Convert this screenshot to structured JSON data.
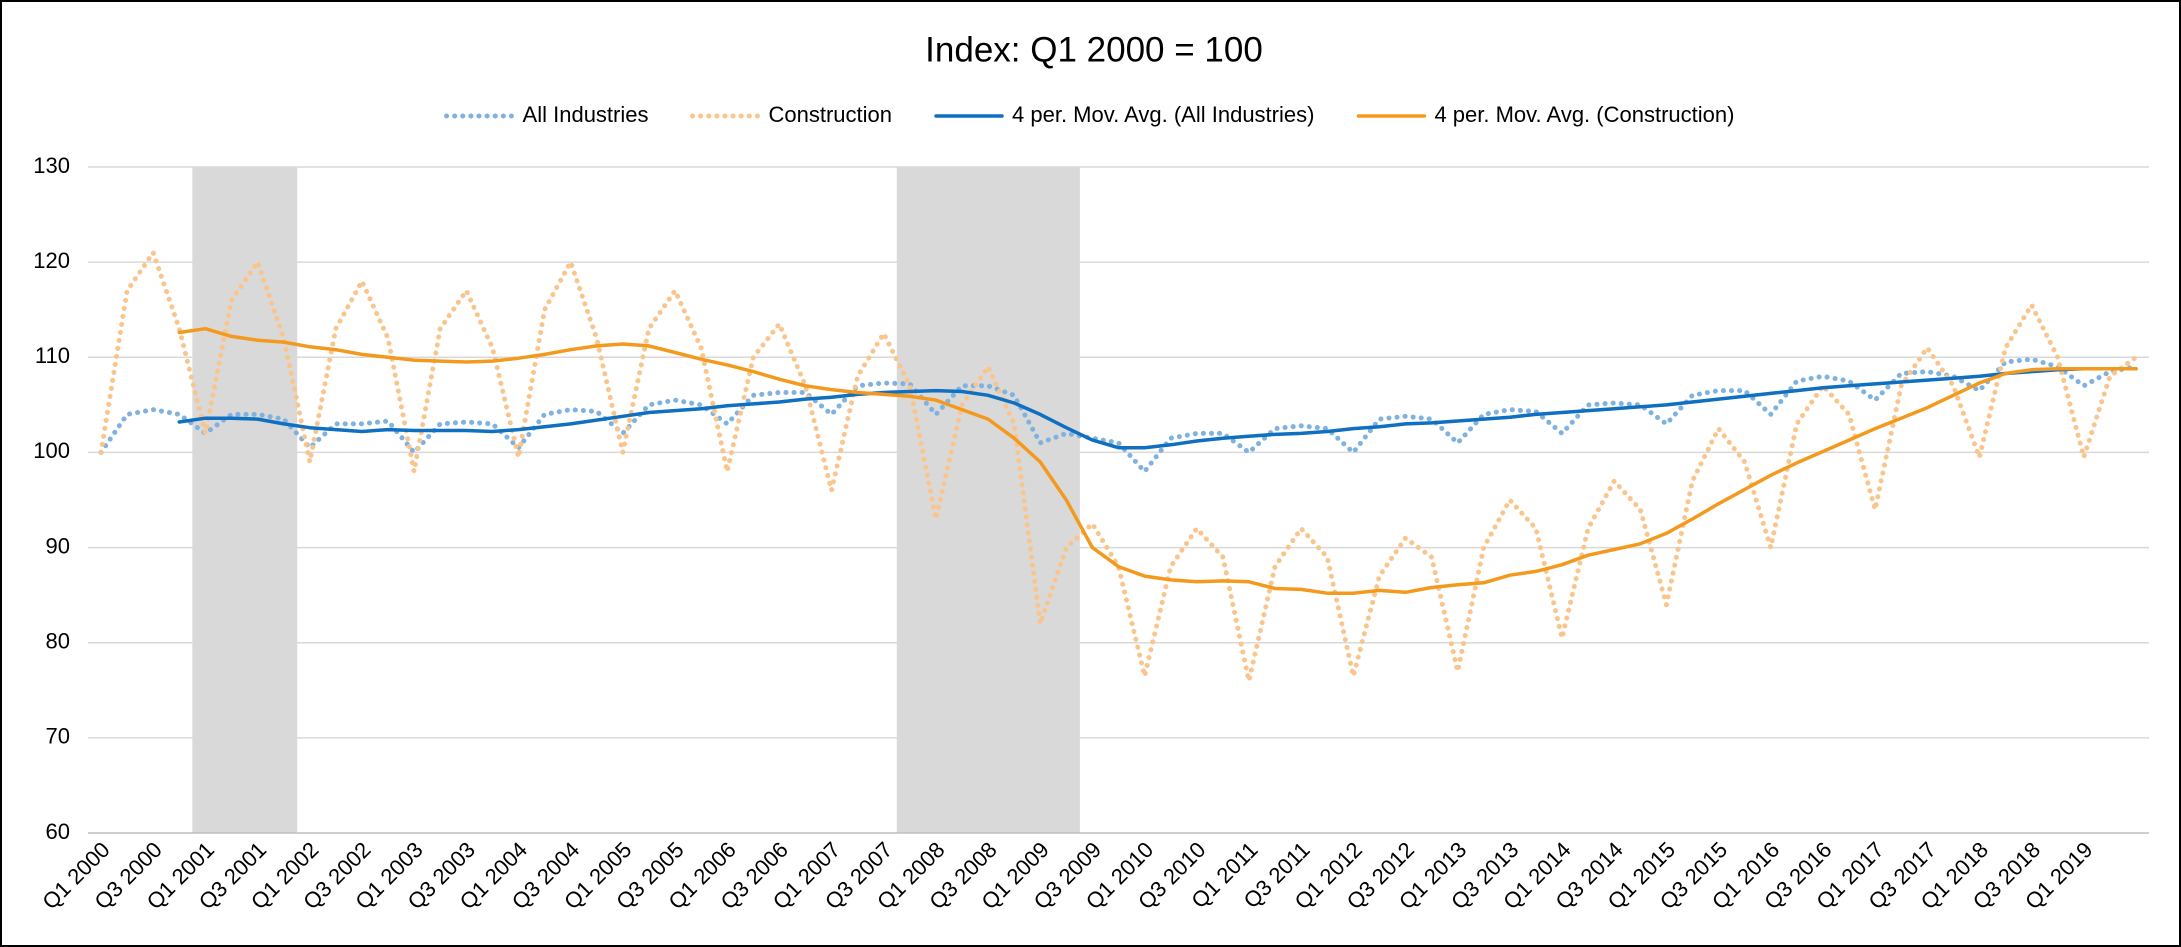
{
  "chart_data": {
    "type": "line",
    "title": "Index: Q1 2000 = 100",
    "categories": [
      "Q1 2000",
      null,
      "Q3 2000",
      null,
      "Q1 2001",
      null,
      "Q3 2001",
      null,
      "Q1 2002",
      null,
      "Q3 2002",
      null,
      "Q1 2003",
      null,
      "Q3 2003",
      null,
      "Q1 2004",
      null,
      "Q3 2004",
      null,
      "Q1 2005",
      null,
      "Q3 2005",
      null,
      "Q1 2006",
      null,
      "Q3 2006",
      null,
      "Q1 2007",
      null,
      "Q3 2007",
      null,
      "Q1 2008",
      null,
      "Q3 2008",
      null,
      "Q1 2009",
      null,
      "Q3 2009",
      null,
      "Q1 2010",
      null,
      "Q3 2010",
      null,
      "Q1 2011",
      null,
      "Q3 2011",
      null,
      "Q1 2012",
      null,
      "Q3 2012",
      null,
      "Q1 2013",
      null,
      "Q3 2013",
      null,
      "Q1 2014",
      null,
      "Q3 2014",
      null,
      "Q1 2015",
      null,
      "Q3 2015",
      null,
      "Q1 2016",
      null,
      "Q3 2016",
      null,
      "Q1 2017",
      null,
      "Q3 2017",
      null,
      "Q1 2018",
      null,
      "Q3 2018",
      null,
      "Q1 2019",
      null,
      null
    ],
    "series": [
      {
        "type": "bar",
        "color": "#d9d9d9",
        "values": [
          null,
          null,
          null,
          null,
          130,
          130,
          130,
          130,
          null,
          null,
          null,
          null,
          null,
          null,
          null,
          null,
          null,
          null,
          null,
          null,
          null,
          null,
          null,
          null,
          null,
          null,
          null,
          null,
          null,
          null,
          null,
          130,
          130,
          130,
          130,
          130,
          130,
          130,
          null,
          null,
          null,
          null,
          null,
          null,
          null,
          null,
          null,
          null,
          null,
          null,
          null,
          null,
          null,
          null,
          null,
          null,
          null,
          null,
          null,
          null,
          null,
          null,
          null,
          null,
          null,
          null,
          null,
          null,
          null,
          null,
          null,
          null,
          null,
          null,
          null,
          null,
          null,
          null,
          null
        ]
      },
      {
        "name": "All Industries",
        "style": "dotted",
        "color": "#7fb2de",
        "values": [
          100,
          104,
          104.5,
          104,
          102,
          104,
          104,
          103.5,
          100.5,
          103,
          103,
          103.3,
          100,
          103,
          103.2,
          103,
          100.5,
          104,
          104.5,
          104.3,
          102,
          105,
          105.5,
          105,
          103,
          106,
          106.3,
          106.3,
          104,
          107,
          107.3,
          107.2,
          104,
          107,
          107,
          106,
          101,
          102,
          101.5,
          101,
          98,
          101.5,
          102,
          102,
          100,
          102.5,
          102.8,
          102.5,
          100,
          103.5,
          103.8,
          103.5,
          101,
          104,
          104.5,
          104.3,
          102,
          105,
          105.2,
          105,
          103,
          106,
          106.5,
          106.5,
          104,
          107.5,
          108,
          107.5,
          105.5,
          108.3,
          108.5,
          108,
          106.5,
          109.5,
          109.8,
          109,
          107,
          108.5,
          109
        ]
      },
      {
        "name": "Construction",
        "style": "dotted",
        "color": "#f9c58c",
        "values": [
          100,
          117,
          121,
          113,
          102,
          116,
          120,
          112,
          99,
          113,
          118,
          112,
          98,
          113,
          117,
          111,
          99.5,
          115,
          120,
          112,
          100,
          113,
          117,
          111,
          98,
          110,
          113.5,
          107,
          96,
          108,
          112.5,
          107,
          93,
          105,
          109,
          103,
          82,
          90,
          92.5,
          88,
          76.5,
          88,
          92,
          89,
          76,
          88,
          92,
          89,
          76.5,
          87,
          91,
          89,
          77,
          90,
          95,
          92,
          80.5,
          92,
          97,
          94,
          84,
          97,
          102.5,
          99,
          90,
          103,
          107,
          104,
          94,
          107,
          111,
          107,
          99.5,
          111,
          115.5,
          110,
          99.5,
          108,
          110
        ]
      },
      {
        "name": "4 per. Mov. Avg. (All Industries)",
        "style": "solid",
        "color": "#0f6fc0",
        "values": [
          null,
          null,
          null,
          103.2,
          103.6,
          103.6,
          103.5,
          103.0,
          102.6,
          102.4,
          102.2,
          102.4,
          102.3,
          102.3,
          102.3,
          102.2,
          102.4,
          102.7,
          103.0,
          103.4,
          103.8,
          104.2,
          104.4,
          104.6,
          104.9,
          105.1,
          105.3,
          105.6,
          105.8,
          106.1,
          106.3,
          106.4,
          106.5,
          106.4,
          106.0,
          105.2,
          104.0,
          102.6,
          101.3,
          100.5,
          100.5,
          100.8,
          101.2,
          101.5,
          101.7,
          101.9,
          102.0,
          102.2,
          102.5,
          102.7,
          103.0,
          103.1,
          103.3,
          103.5,
          103.7,
          104.0,
          104.2,
          104.4,
          104.6,
          104.8,
          105.0,
          105.3,
          105.6,
          105.9,
          106.2,
          106.5,
          106.8,
          107.0,
          107.2,
          107.4,
          107.6,
          107.8,
          108.0,
          108.3,
          108.5,
          108.7,
          108.8,
          108.8,
          108.8
        ]
      },
      {
        "name": "4 per. Mov. Avg. (Construction)",
        "style": "solid",
        "color": "#f39a1e",
        "values": [
          null,
          null,
          null,
          112.6,
          113,
          112.2,
          111.8,
          111.6,
          111.1,
          110.8,
          110.3,
          110.0,
          109.7,
          109.6,
          109.5,
          109.6,
          109.9,
          110.3,
          110.8,
          111.2,
          111.4,
          111.2,
          110.5,
          109.8,
          109.2,
          108.5,
          107.7,
          107.0,
          106.6,
          106.3,
          106.1,
          105.9,
          105.5,
          104.5,
          103.5,
          101.5,
          99,
          95,
          90,
          88,
          87,
          86.6,
          86.4,
          86.5,
          86.4,
          85.7,
          85.6,
          85.2,
          85.2,
          85.5,
          85.3,
          85.8,
          86.1,
          86.3,
          87.1,
          87.5,
          88.2,
          89.2,
          89.8,
          90.4,
          91.5,
          93,
          94.6,
          96.1,
          97.6,
          98.9,
          100.1,
          101.3,
          102.5,
          103.6,
          104.7,
          106,
          107.3,
          108.3,
          108.7,
          108.8,
          108.8,
          108.8,
          108.8
        ]
      }
    ],
    "ylim": [
      60,
      130
    ],
    "yticks": [
      60,
      70,
      80,
      90,
      100,
      110,
      120,
      130
    ],
    "grid": true,
    "legend": "top"
  }
}
